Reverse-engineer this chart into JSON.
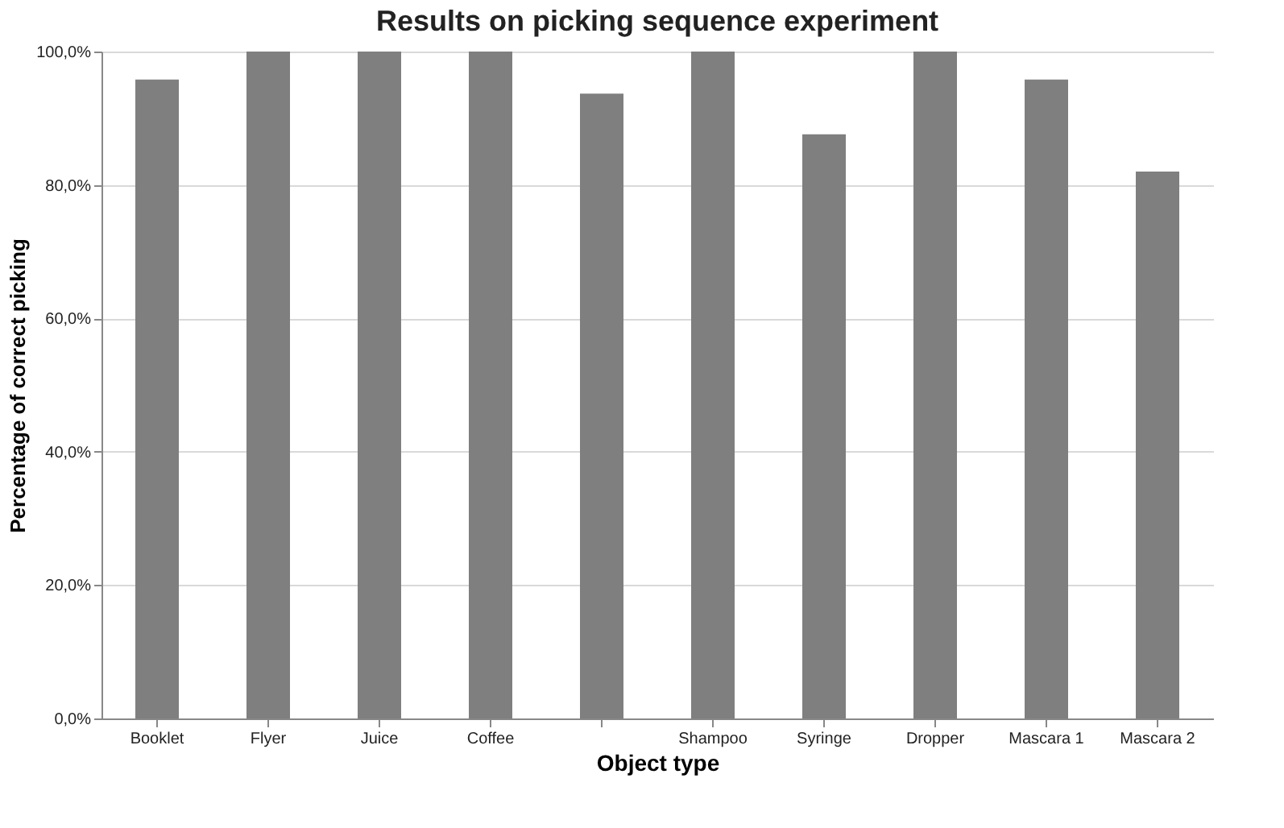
{
  "chart_data": {
    "type": "bar",
    "title": "Results on picking sequence experiment",
    "xlabel": "Object type",
    "ylabel": "Percentage of correct picking",
    "categories": [
      "Booklet",
      "Flyer",
      "Juice",
      "Coffee",
      null,
      "Shampoo",
      "Syringe",
      "Dropper",
      "Mascara 1",
      "Mascara 2"
    ],
    "values": [
      95.8,
      100,
      100,
      100,
      93.7,
      100,
      87.6,
      100,
      95.8,
      82.0
    ],
    "color": "#7f7f7f",
    "ylim": [
      0,
      100
    ],
    "yticks": [
      {
        "value": 0,
        "label": "0,0%"
      },
      {
        "value": 20,
        "label": "20,0%"
      },
      {
        "value": 40,
        "label": "40,0%"
      },
      {
        "value": 60,
        "label": "60,0%"
      },
      {
        "value": 80,
        "label": "80,0%"
      },
      {
        "value": 100,
        "label": "100,0%"
      }
    ],
    "grid": "y"
  }
}
